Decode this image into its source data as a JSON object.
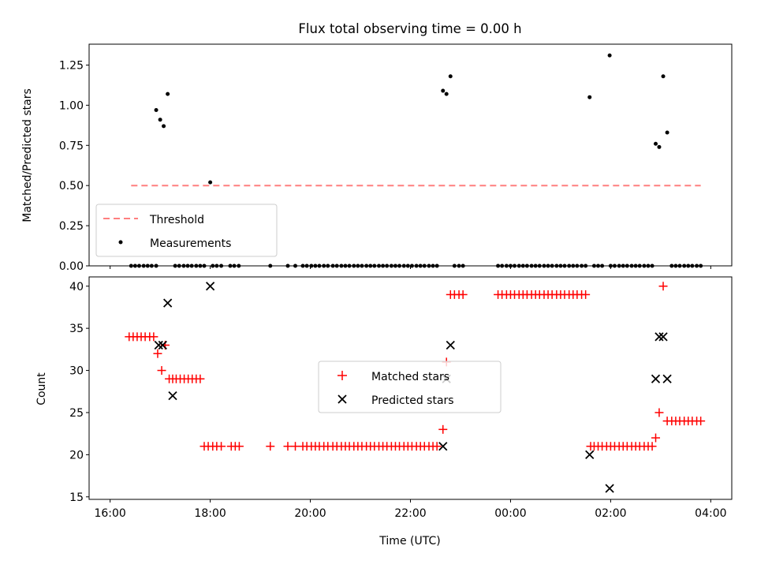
{
  "chart_data": [
    {
      "type": "scatter",
      "title": "Flux total observing time = 0.00 h",
      "ylabel": "Matched/Predicted stars",
      "xlabel": "",
      "xlim": [
        -0.42,
        12.42
      ],
      "ylim": [
        0.0,
        1.38
      ],
      "yticks": [
        0.0,
        0.25,
        0.5,
        0.75,
        1.0,
        1.25
      ],
      "ytick_labels": [
        "0.00",
        "0.25",
        "0.50",
        "0.75",
        "1.00",
        "1.25"
      ],
      "xticks": [
        0,
        2,
        4,
        6,
        8,
        10,
        12
      ],
      "threshold": {
        "name": "Threshold",
        "value": 0.5,
        "x": [
          0.42,
          11.8
        ],
        "color": "#ff7f7f"
      },
      "measurements": {
        "name": "Measurements",
        "color": "#000000",
        "x": [
          0.92,
          1.0,
          1.07,
          1.15,
          2.0,
          6.65,
          6.72,
          6.8,
          9.58,
          9.98,
          10.9,
          10.97,
          11.05,
          11.13
        ],
        "y": [
          0.97,
          0.91,
          0.87,
          1.07,
          0.52,
          1.09,
          1.07,
          1.18,
          1.05,
          1.31,
          0.76,
          0.74,
          1.18,
          0.83
        ],
        "zero_x": [
          0.42,
          0.5,
          0.58,
          0.67,
          0.75,
          0.83,
          0.92,
          1.3,
          1.38,
          1.47,
          1.55,
          1.63,
          1.72,
          1.8,
          1.88,
          2.05,
          2.13,
          2.22,
          2.4,
          2.48,
          2.57,
          3.2,
          3.55,
          3.7,
          3.85,
          3.93,
          4.02,
          4.1,
          4.18,
          4.27,
          4.35,
          4.45,
          4.53,
          4.62,
          4.7,
          4.78,
          4.87,
          4.95,
          5.03,
          5.12,
          5.2,
          5.28,
          5.37,
          5.45,
          5.53,
          5.62,
          5.7,
          5.78,
          5.87,
          5.95,
          6.03,
          6.12,
          6.2,
          6.28,
          6.37,
          6.45,
          6.53,
          6.88,
          6.97,
          7.05,
          7.75,
          7.83,
          7.92,
          8.0,
          8.08,
          8.17,
          8.25,
          8.33,
          8.42,
          8.5,
          8.58,
          8.67,
          8.75,
          8.83,
          8.92,
          9.0,
          9.08,
          9.17,
          9.25,
          9.33,
          9.42,
          9.5,
          9.67,
          9.75,
          9.83,
          10.0,
          10.08,
          10.17,
          10.25,
          10.33,
          10.42,
          10.5,
          10.58,
          10.67,
          10.75,
          10.83,
          11.22,
          11.3,
          11.38,
          11.47,
          11.55,
          11.63,
          11.72,
          11.8
        ]
      },
      "legend": {
        "placement": "lower-left",
        "entries": [
          "Threshold",
          "Measurements"
        ]
      }
    },
    {
      "type": "scatter",
      "title": "",
      "ylabel": "Count",
      "xlabel": "Time (UTC)",
      "xlim": [
        -0.42,
        12.42
      ],
      "ylim": [
        14.7,
        41.1
      ],
      "yticks": [
        15,
        20,
        25,
        30,
        35,
        40
      ],
      "ytick_labels": [
        "15",
        "20",
        "25",
        "30",
        "35",
        "40"
      ],
      "xticks": [
        0,
        2,
        4,
        6,
        8,
        10,
        12
      ],
      "xtick_labels": [
        "16:00",
        "18:00",
        "20:00",
        "22:00",
        "00:00",
        "02:00",
        "04:00"
      ],
      "series": [
        {
          "name": "Matched stars",
          "marker": "+",
          "color": "#ff0000",
          "x": [
            0.38,
            0.46,
            0.54,
            0.62,
            0.7,
            0.79,
            0.87,
            0.95,
            1.03,
            1.1,
            1.18,
            1.25,
            1.32,
            1.4,
            1.48,
            1.56,
            1.64,
            1.72,
            1.8,
            1.88,
            1.96,
            2.05,
            2.13,
            2.22,
            2.42,
            2.5,
            2.58,
            3.2,
            3.55,
            3.7,
            3.85,
            3.93,
            4.02,
            4.1,
            4.18,
            4.27,
            4.35,
            4.45,
            4.53,
            4.62,
            4.7,
            4.78,
            4.87,
            4.95,
            5.03,
            5.12,
            5.2,
            5.28,
            5.37,
            5.45,
            5.53,
            5.62,
            5.7,
            5.78,
            5.87,
            5.95,
            6.03,
            6.12,
            6.2,
            6.28,
            6.37,
            6.45,
            6.53,
            6.65,
            6.72,
            6.8,
            6.88,
            6.97,
            7.05,
            7.75,
            7.83,
            7.92,
            8.0,
            8.08,
            8.17,
            8.25,
            8.33,
            8.42,
            8.5,
            8.58,
            8.67,
            8.75,
            8.83,
            8.92,
            9.0,
            9.08,
            9.17,
            9.25,
            9.33,
            9.42,
            9.5,
            9.6,
            9.67,
            9.75,
            9.83,
            9.92,
            10.0,
            10.08,
            10.17,
            10.25,
            10.33,
            10.42,
            10.5,
            10.58,
            10.67,
            10.75,
            10.83,
            10.9,
            10.97,
            11.05,
            11.13,
            11.22,
            11.3,
            11.38,
            11.47,
            11.55,
            11.63,
            11.72,
            11.8
          ],
          "y": [
            34,
            34,
            34,
            34,
            34,
            34,
            34,
            32,
            30,
            33,
            29,
            29,
            29,
            29,
            29,
            29,
            29,
            29,
            29,
            21,
            21,
            21,
            21,
            21,
            21,
            21,
            21,
            21,
            21,
            21,
            21,
            21,
            21,
            21,
            21,
            21,
            21,
            21,
            21,
            21,
            21,
            21,
            21,
            21,
            21,
            21,
            21,
            21,
            21,
            21,
            21,
            21,
            21,
            21,
            21,
            21,
            21,
            21,
            21,
            21,
            21,
            21,
            21,
            23,
            31,
            39,
            39,
            39,
            39,
            39,
            39,
            39,
            39,
            39,
            39,
            39,
            39,
            39,
            39,
            39,
            39,
            39,
            39,
            39,
            39,
            39,
            39,
            39,
            39,
            39,
            39,
            21,
            21,
            21,
            21,
            21,
            21,
            21,
            21,
            21,
            21,
            21,
            21,
            21,
            21,
            21,
            21,
            22,
            25,
            40,
            24,
            24,
            24,
            24,
            24,
            24,
            24,
            24,
            24
          ]
        },
        {
          "name": "Predicted stars",
          "marker": "x",
          "color": "#000000",
          "x": [
            0.97,
            1.05,
            1.15,
            1.25,
            2.0,
            6.65,
            6.72,
            6.8,
            9.58,
            9.98,
            10.9,
            10.97,
            11.05,
            11.13
          ],
          "y": [
            33,
            33,
            38,
            27,
            40,
            21,
            29,
            33,
            20,
            16,
            29,
            34,
            34,
            29
          ]
        }
      ],
      "legend": {
        "placement": "center",
        "entries": [
          "Matched stars",
          "Predicted stars"
        ]
      }
    }
  ]
}
